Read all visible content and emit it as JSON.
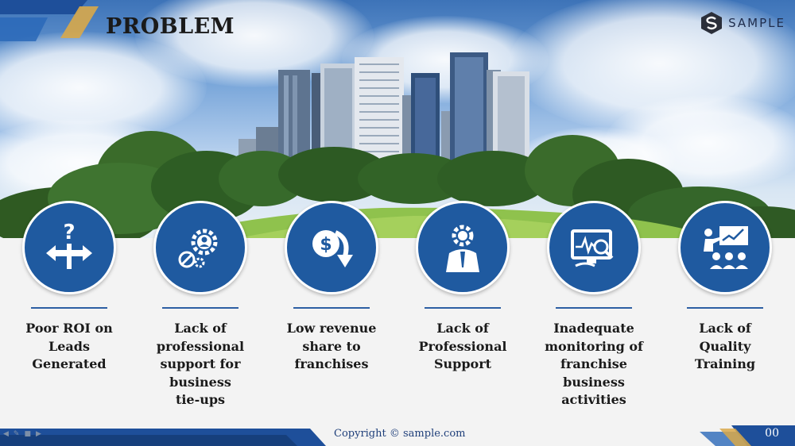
{
  "slide": {
    "title": "PROBLEM",
    "brand": {
      "name": "SAMPLE",
      "logo_icon": "hexagon-s-logo-icon"
    },
    "colors": {
      "circle": "#1f5aa0",
      "rule": "#2d5fa3",
      "accent_blue": "#1e4f9a",
      "accent_gold": "#d8a84a"
    },
    "items": [
      {
        "label_lines": [
          "Poor ROI on",
          "Leads",
          "Generated"
        ],
        "icon": "question-crossroads-icon"
      },
      {
        "label_lines": [
          "Lack of",
          "professional",
          "support for",
          "business",
          "tie-ups"
        ],
        "icon": "gear-user-blocked-icon"
      },
      {
        "label_lines": [
          "Low revenue",
          "share to",
          "franchises"
        ],
        "icon": "dollar-down-arrow-icon"
      },
      {
        "label_lines": [
          "Lack of",
          "Professional",
          "Support"
        ],
        "icon": "gear-head-person-icon"
      },
      {
        "label_lines": [
          "Inadequate",
          "monitoring of",
          "franchise",
          "business",
          "activities"
        ],
        "icon": "monitor-magnifier-icon"
      },
      {
        "label_lines": [
          "Lack of",
          "Quality",
          "Training"
        ],
        "icon": "presentation-training-icon"
      }
    ],
    "footer": {
      "copyright": "Copyright © sample.com",
      "page_number": "00"
    }
  }
}
